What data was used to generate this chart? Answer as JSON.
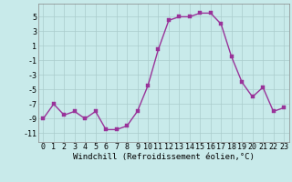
{
  "x": [
    0,
    1,
    2,
    3,
    4,
    5,
    6,
    7,
    8,
    9,
    10,
    11,
    12,
    13,
    14,
    15,
    16,
    17,
    18,
    19,
    20,
    21,
    22,
    23
  ],
  "y": [
    -9,
    -7,
    -8.5,
    -8,
    -9,
    -8,
    -10.5,
    -10.5,
    -10,
    -8,
    -4.5,
    0.5,
    4.5,
    5,
    5,
    5.5,
    5.5,
    4,
    -0.5,
    -4,
    -6,
    -4.7,
    -8,
    -7.5
  ],
  "line_color": "#993399",
  "marker_color": "#993399",
  "bg_color": "#c8eaea",
  "grid_color": "#aacccc",
  "xlabel": "Windchill (Refroidissement éolien,°C)",
  "yticks": [
    -11,
    -9,
    -7,
    -5,
    -3,
    -1,
    1,
    3,
    5
  ],
  "xtick_labels": [
    "0",
    "1",
    "2",
    "3",
    "4",
    "5",
    "6",
    "7",
    "8",
    "9",
    "10",
    "11",
    "12",
    "13",
    "14",
    "15",
    "16",
    "17",
    "18",
    "19",
    "20",
    "21",
    "22",
    "23"
  ],
  "ylim": [
    -12.2,
    6.8
  ],
  "xlim": [
    -0.5,
    23.5
  ],
  "xlabel_fontsize": 6.5,
  "tick_fontsize": 6,
  "line_width": 1.0,
  "marker_size": 2.5
}
